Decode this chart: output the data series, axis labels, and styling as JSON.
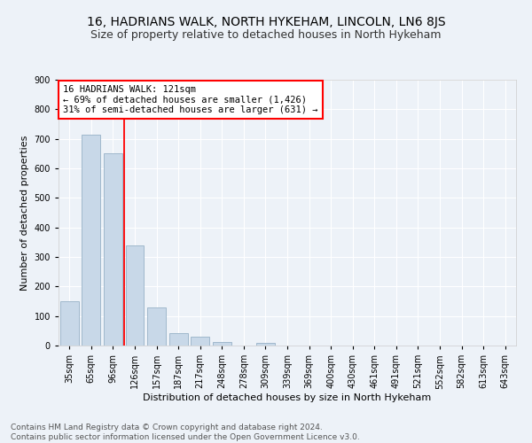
{
  "title": "16, HADRIANS WALK, NORTH HYKEHAM, LINCOLN, LN6 8JS",
  "subtitle": "Size of property relative to detached houses in North Hykeham",
  "xlabel": "Distribution of detached houses by size in North Hykeham",
  "ylabel": "Number of detached properties",
  "bar_labels": [
    "35sqm",
    "65sqm",
    "96sqm",
    "126sqm",
    "157sqm",
    "187sqm",
    "217sqm",
    "248sqm",
    "278sqm",
    "309sqm",
    "339sqm",
    "369sqm",
    "400sqm",
    "430sqm",
    "461sqm",
    "491sqm",
    "521sqm",
    "552sqm",
    "582sqm",
    "613sqm",
    "643sqm"
  ],
  "bar_values": [
    150,
    715,
    650,
    340,
    128,
    42,
    30,
    12,
    0,
    10,
    0,
    0,
    0,
    0,
    0,
    0,
    0,
    0,
    0,
    0,
    0
  ],
  "bar_color": "#c8d8e8",
  "bar_edge_color": "#a0b8cc",
  "vline_color": "red",
  "annotation_text": "16 HADRIANS WALK: 121sqm\n← 69% of detached houses are smaller (1,426)\n31% of semi-detached houses are larger (631) →",
  "annotation_box_color": "white",
  "annotation_box_edge": "red",
  "ylim": [
    0,
    900
  ],
  "yticks": [
    0,
    100,
    200,
    300,
    400,
    500,
    600,
    700,
    800,
    900
  ],
  "footnote": "Contains HM Land Registry data © Crown copyright and database right 2024.\nContains public sector information licensed under the Open Government Licence v3.0.",
  "bg_color": "#edf2f8",
  "plot_bg_color": "#edf2f8",
  "grid_color": "white",
  "title_fontsize": 10,
  "subtitle_fontsize": 9,
  "axis_label_fontsize": 8,
  "tick_fontsize": 7,
  "annotation_fontsize": 7.5,
  "footnote_fontsize": 6.5
}
